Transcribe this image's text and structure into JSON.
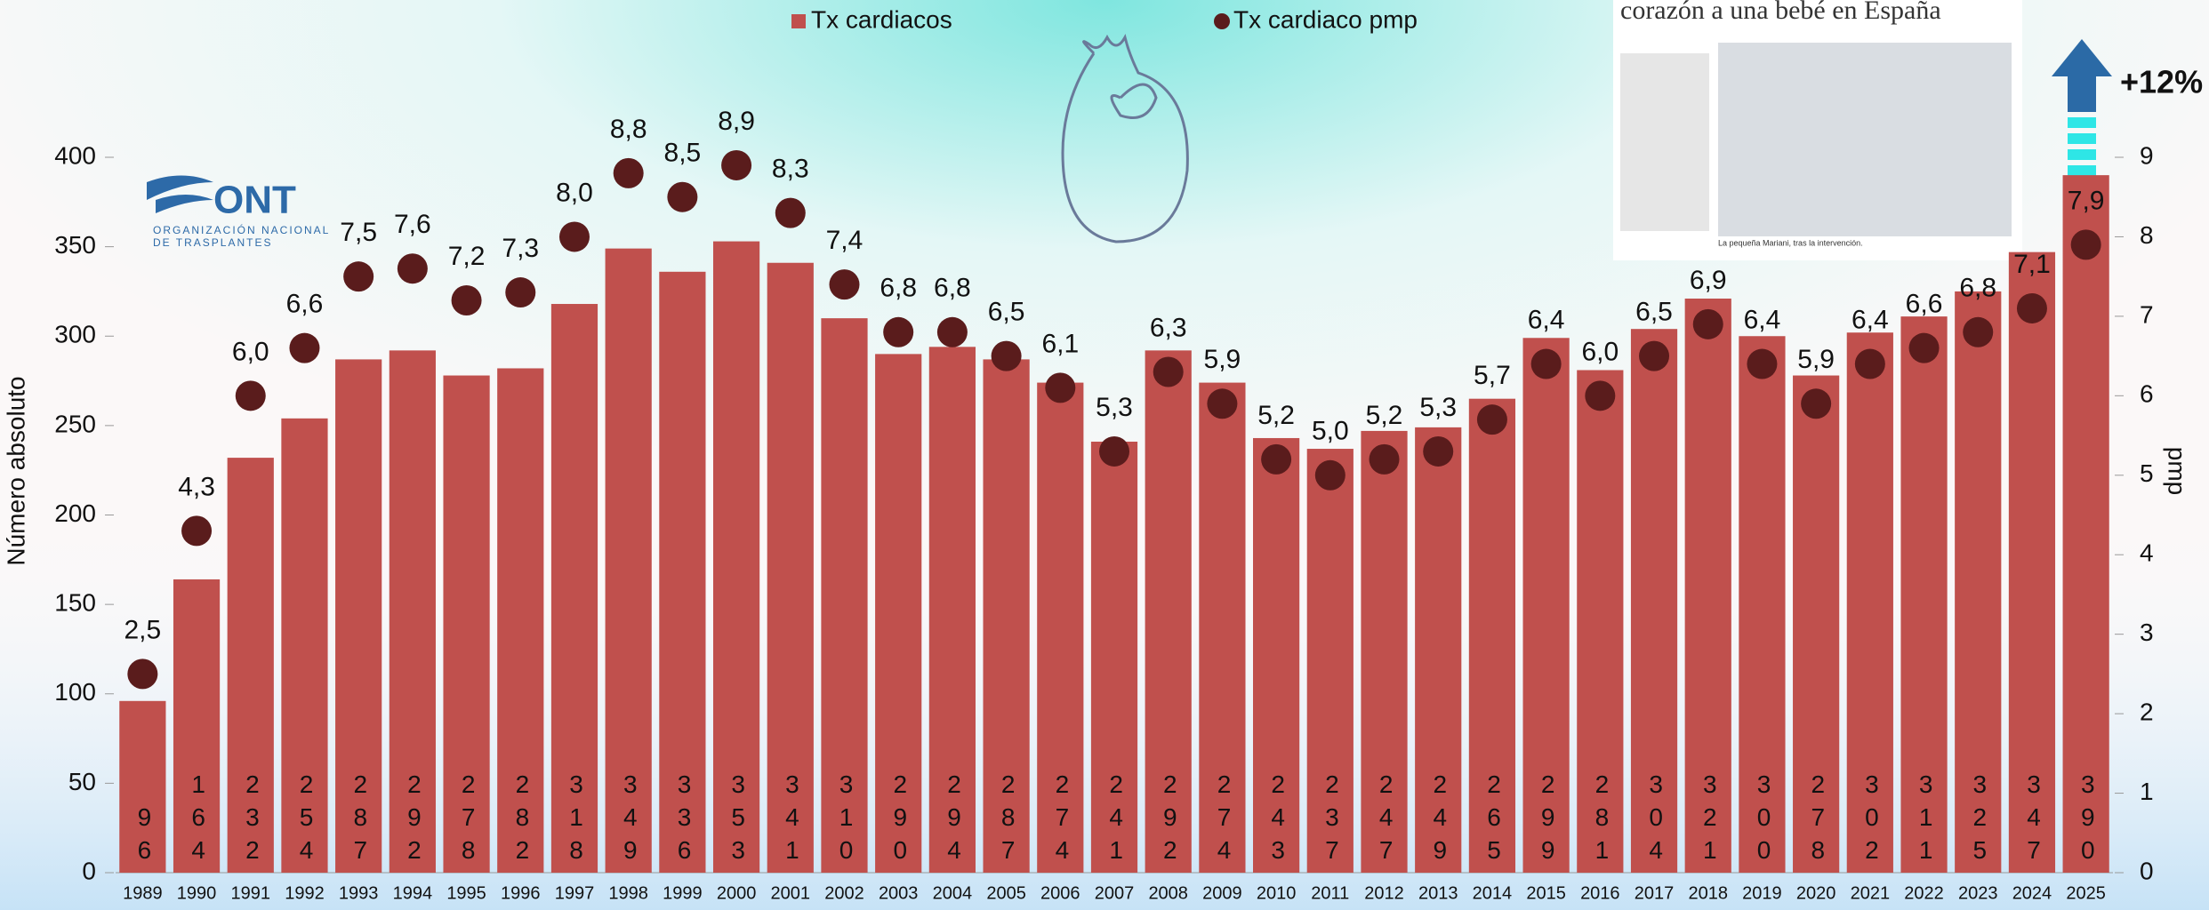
{
  "chart_data": {
    "type": "bar",
    "legend_position": "top",
    "y_label": "Número absoluto",
    "y2_label": "pmp",
    "categories": [
      "1989",
      "1990",
      "1991",
      "1992",
      "1993",
      "1994",
      "1995",
      "1996",
      "1997",
      "1998",
      "1999",
      "2000",
      "2001",
      "2002",
      "2003",
      "2004",
      "2005",
      "2006",
      "2007",
      "2008",
      "2009",
      "2010",
      "2011",
      "2012",
      "2013",
      "2014",
      "2015",
      "2016",
      "2017",
      "2018",
      "2019",
      "2020",
      "2021",
      "2022",
      "2023",
      "2024",
      "2025"
    ],
    "series": [
      {
        "name": "Tx cardiacos",
        "type": "bar",
        "color": "#c0504d",
        "values": [
          96,
          164,
          232,
          254,
          287,
          292,
          278,
          282,
          318,
          349,
          336,
          353,
          341,
          310,
          290,
          294,
          287,
          274,
          241,
          292,
          274,
          243,
          237,
          247,
          249,
          265,
          299,
          281,
          304,
          321,
          300,
          278,
          302,
          311,
          325,
          347,
          390
        ]
      },
      {
        "name": "Tx cardiaco pmp",
        "type": "scatter",
        "axis": "y2",
        "color": "#5a1c1c",
        "values": [
          2.5,
          4.3,
          6.0,
          6.6,
          7.5,
          7.6,
          7.2,
          7.3,
          8.0,
          8.8,
          8.5,
          8.9,
          8.3,
          7.4,
          6.8,
          6.8,
          6.5,
          6.1,
          5.3,
          6.3,
          5.9,
          5.2,
          5.0,
          5.2,
          5.3,
          5.7,
          6.4,
          6.0,
          6.5,
          6.9,
          6.4,
          5.9,
          6.4,
          6.6,
          6.8,
          7.1,
          7.9
        ],
        "value_labels": [
          "2,5",
          "4,3",
          "6,0",
          "6,6",
          "7,5",
          "7,6",
          "7,2",
          "7,3",
          "8,0",
          "8,8",
          "8,5",
          "8,9",
          "8,3",
          "7,4",
          "6,8",
          "6,8",
          "6,5",
          "6,1",
          "5,3",
          "6,3",
          "5,9",
          "5,2",
          "5,0",
          "5,2",
          "5,3",
          "5,7",
          "6,4",
          "6,0",
          "6,5",
          "6,9",
          "6,4",
          "5,9",
          "6,4",
          "6,6",
          "6,8",
          "7,1",
          "7,9"
        ]
      }
    ],
    "ylim": [
      0,
      400
    ],
    "yticks": [
      0,
      50,
      100,
      150,
      200,
      250,
      300,
      350,
      400
    ],
    "y2lim": [
      0,
      9
    ],
    "y2ticks": [
      0,
      1,
      2,
      3,
      4,
      5,
      6,
      7,
      8,
      9
    ],
    "annotations": {
      "change": "+12%",
      "logo": "ONT",
      "logo_subtitle": "ORGANIZACIÓN NACIONAL DE TRASPLANTES",
      "news_headline": "corazón a una bebé en España",
      "news_caption": "La pequeña Mariani, tras la intervención."
    }
  }
}
